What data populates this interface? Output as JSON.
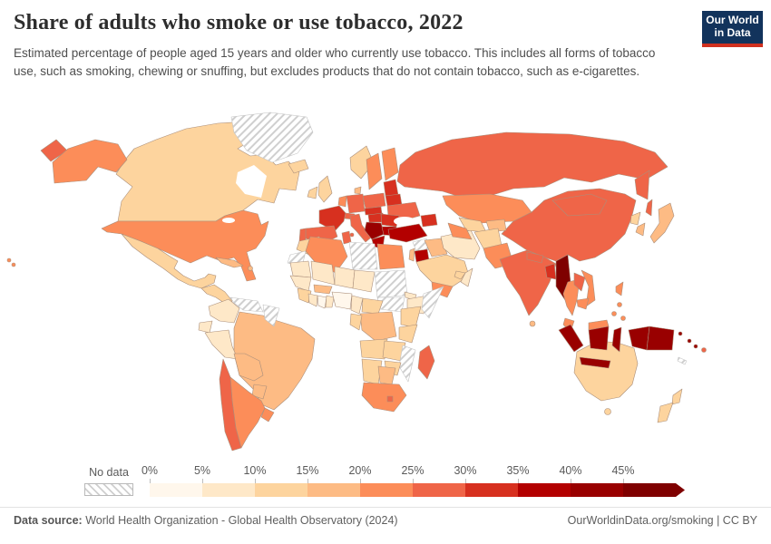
{
  "header": {
    "title": "Share of adults who smoke or use tobacco, 2022",
    "subtitle": "Estimated percentage of people aged 15 years and older who currently use tobacco. This includes all forms of tobacco use, such as smoking, chewing or snuffing, but excludes products that do not contain tobacco, such as e-cigarettes.",
    "logo_line1": "Our World",
    "logo_line2": "in Data"
  },
  "footer": {
    "source_label": "Data source:",
    "source_text": " World Health Organization - Global Health Observatory (2024)",
    "credit": "OurWorldinData.org/smoking | CC BY"
  },
  "colors": {
    "logo_bg": "#12335c",
    "logo_accent": "#d0301f",
    "land_border": "#ab8f7b",
    "no_data_border": "#c4c4c4"
  },
  "chart_data": {
    "type": "heatmap",
    "subtype": "choropleth-world-map",
    "title": "Share of adults who smoke or use tobacco, 2022",
    "unit": "%",
    "legend": {
      "no_data_label": "No data",
      "tick_labels": [
        "0%",
        "5%",
        "10%",
        "15%",
        "20%",
        "25%",
        "30%",
        "35%",
        "40%",
        "45%"
      ],
      "bucket_size": 5,
      "colors": [
        "#fff7ec",
        "#fee8c8",
        "#fdd49e",
        "#fdbb84",
        "#fc8d59",
        "#ef6548",
        "#d7301f",
        "#b30000",
        "#990000",
        "#7f0000"
      ]
    },
    "regions": [
      {
        "name": "United States",
        "value": 23
      },
      {
        "name": "Canada",
        "value": 12
      },
      {
        "name": "Mexico",
        "value": 13
      },
      {
        "name": "Greenland",
        "value": null
      },
      {
        "name": "Guatemala",
        "value": 11
      },
      {
        "name": "Cuba",
        "value": 17
      },
      {
        "name": "Dominican Republic",
        "value": 17
      },
      {
        "name": "Colombia",
        "value": 8.5
      },
      {
        "name": "Venezuela",
        "value": null
      },
      {
        "name": "Guyana",
        "value": null
      },
      {
        "name": "Ecuador",
        "value": 7
      },
      {
        "name": "Peru",
        "value": 8
      },
      {
        "name": "Brazil",
        "value": 16
      },
      {
        "name": "Bolivia",
        "value": 17
      },
      {
        "name": "Paraguay",
        "value": 16
      },
      {
        "name": "Chile",
        "value": 27.5
      },
      {
        "name": "Argentina",
        "value": 24
      },
      {
        "name": "Uruguay",
        "value": 21
      },
      {
        "name": "Iceland",
        "value": 12
      },
      {
        "name": "Ireland",
        "value": 14
      },
      {
        "name": "United Kingdom",
        "value": 13.5
      },
      {
        "name": "Norway",
        "value": 14
      },
      {
        "name": "Sweden",
        "value": 23
      },
      {
        "name": "Finland",
        "value": 22
      },
      {
        "name": "Denmark",
        "value": 17
      },
      {
        "name": "Germany",
        "value": 28
      },
      {
        "name": "Netherlands",
        "value": 24
      },
      {
        "name": "France",
        "value": 33
      },
      {
        "name": "Spain",
        "value": 26.5
      },
      {
        "name": "Portugal",
        "value": 26
      },
      {
        "name": "Italy",
        "value": 26
      },
      {
        "name": "Switzerland",
        "value": 25.5
      },
      {
        "name": "Poland",
        "value": 26
      },
      {
        "name": "Czechia",
        "value": 31
      },
      {
        "name": "Hungary",
        "value": 31
      },
      {
        "name": "Ukraine",
        "value": 27
      },
      {
        "name": "Romania",
        "value": 30.5
      },
      {
        "name": "Serbia",
        "value": 40.5
      },
      {
        "name": "Bulgaria",
        "value": 37.5
      },
      {
        "name": "Greece",
        "value": 36
      },
      {
        "name": "Belarus",
        "value": 30.5
      },
      {
        "name": "Latvia",
        "value": 34
      },
      {
        "name": "Russia",
        "value": 26.8
      },
      {
        "name": "Georgia",
        "value": 31
      },
      {
        "name": "Turkey",
        "value": 36.5
      },
      {
        "name": "Syria",
        "value": null
      },
      {
        "name": "Israel",
        "value": 19
      },
      {
        "name": "Jordan",
        "value": 35.5
      },
      {
        "name": "Iraq",
        "value": 18.5
      },
      {
        "name": "Saudi Arabia",
        "value": 14.5
      },
      {
        "name": "Yemen",
        "value": 21.5
      },
      {
        "name": "Oman",
        "value": 9
      },
      {
        "name": "United Arab Emirates",
        "value": 12
      },
      {
        "name": "Iran",
        "value": 9.5
      },
      {
        "name": "Afghanistan",
        "value": 12
      },
      {
        "name": "Pakistan",
        "value": 20.5
      },
      {
        "name": "Kazakhstan",
        "value": 23
      },
      {
        "name": "Uzbekistan",
        "value": 14
      },
      {
        "name": "Turkmenistan",
        "value": 21
      },
      {
        "name": "Kyrgyzstan",
        "value": 16
      },
      {
        "name": "India",
        "value": 27
      },
      {
        "name": "Nepal",
        "value": 29
      },
      {
        "name": "Sri Lanka",
        "value": 18
      },
      {
        "name": "Bangladesh",
        "value": 34
      },
      {
        "name": "Myanmar",
        "value": 45.5
      },
      {
        "name": "Thailand",
        "value": 22.5
      },
      {
        "name": "Laos",
        "value": 27.5
      },
      {
        "name": "Vietnam",
        "value": 24
      },
      {
        "name": "Cambodia",
        "value": 21.5
      },
      {
        "name": "Malaysia",
        "value": 22
      },
      {
        "name": "China",
        "value": 25.5
      },
      {
        "name": "Mongolia",
        "value": 27.5
      },
      {
        "name": "North Korea",
        "value": 13
      },
      {
        "name": "South Korea",
        "value": 19
      },
      {
        "name": "Japan",
        "value": 19
      },
      {
        "name": "Philippines",
        "value": 23
      },
      {
        "name": "Indonesia",
        "value": 43
      },
      {
        "name": "Papua New Guinea",
        "value": 44
      },
      {
        "name": "Solomon Islands",
        "value": 42
      },
      {
        "name": "Fiji",
        "value": 27
      },
      {
        "name": "New Caledonia",
        "value": null
      },
      {
        "name": "Australia",
        "value": 13
      },
      {
        "name": "New Zealand",
        "value": 13.5
      },
      {
        "name": "Morocco",
        "value": 13.5
      },
      {
        "name": "Western Sahara",
        "value": null
      },
      {
        "name": "Algeria",
        "value": 21
      },
      {
        "name": "Tunisia",
        "value": 26
      },
      {
        "name": "Libya",
        "value": null
      },
      {
        "name": "Egypt",
        "value": 24
      },
      {
        "name": "Mauritania",
        "value": 9
      },
      {
        "name": "Mali",
        "value": 8
      },
      {
        "name": "Niger",
        "value": 6.5
      },
      {
        "name": "Chad",
        "value": 8
      },
      {
        "name": "Sudan",
        "value": null
      },
      {
        "name": "South Sudan",
        "value": null
      },
      {
        "name": "Eritrea",
        "value": 7
      },
      {
        "name": "Ethiopia",
        "value": 5.5
      },
      {
        "name": "Somalia",
        "value": null
      },
      {
        "name": "Senegal",
        "value": 6.5
      },
      {
        "name": "Sierra Leone",
        "value": 13
      },
      {
        "name": "Ivory Coast",
        "value": 9
      },
      {
        "name": "Ghana",
        "value": 3.5
      },
      {
        "name": "Benin",
        "value": 7
      },
      {
        "name": "Burkina Faso",
        "value": 16
      },
      {
        "name": "Nigeria",
        "value": 3.7
      },
      {
        "name": "Cameroon",
        "value": 7
      },
      {
        "name": "Central African Republic",
        "value": 12
      },
      {
        "name": "Democratic Republic of Congo",
        "value": 16
      },
      {
        "name": "Congo",
        "value": 14
      },
      {
        "name": "Kenya",
        "value": 11.5
      },
      {
        "name": "Tanzania",
        "value": 13
      },
      {
        "name": "Angola",
        "value": 12
      },
      {
        "name": "Zambia",
        "value": 13.5
      },
      {
        "name": "Zimbabwe",
        "value": 13
      },
      {
        "name": "Mozambique",
        "value": null
      },
      {
        "name": "Namibia",
        "value": 14
      },
      {
        "name": "Botswana",
        "value": 17.5
      },
      {
        "name": "South Africa",
        "value": 21.5
      },
      {
        "name": "Lesotho",
        "value": 25
      },
      {
        "name": "Madagascar",
        "value": 27
      }
    ]
  }
}
